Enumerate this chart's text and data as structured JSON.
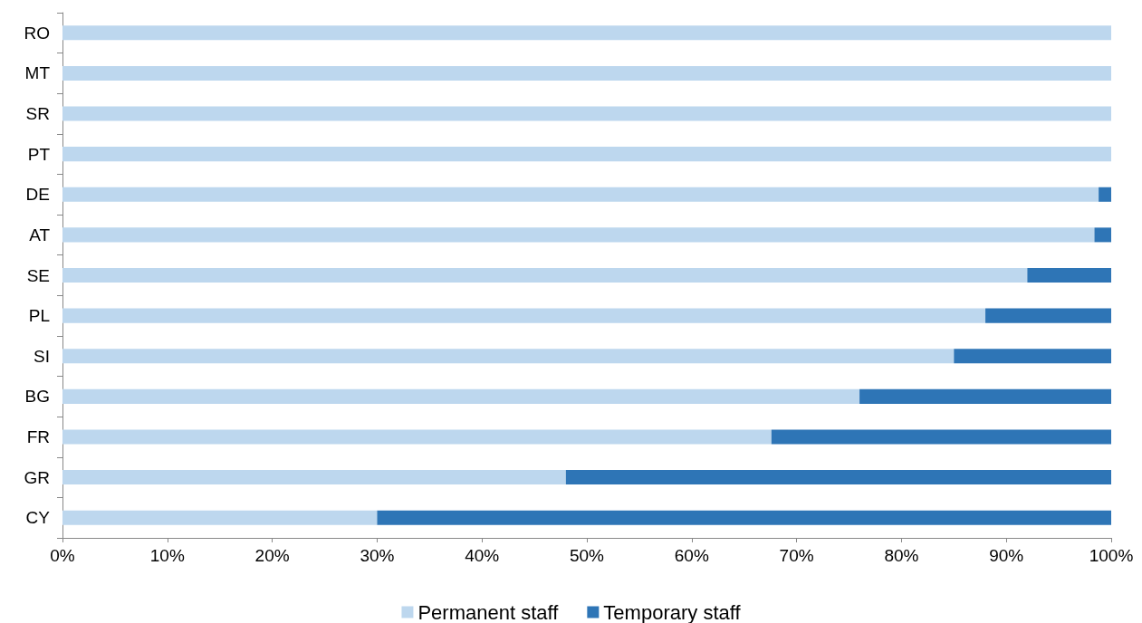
{
  "chart_data": {
    "type": "bar",
    "orientation": "horizontal",
    "stacked": true,
    "categories": [
      "RO",
      "MT",
      "SR",
      "PT",
      "DE",
      "AT",
      "SE",
      "PL",
      "SI",
      "BG",
      "FR",
      "GR",
      "CY"
    ],
    "series": [
      {
        "name": "Permanent staff",
        "color": "#bdd7ee",
        "values": [
          100,
          100,
          100,
          100,
          98.8,
          98.4,
          92,
          88,
          85,
          76,
          67.6,
          48,
          30
        ]
      },
      {
        "name": "Temporary staff",
        "color": "#2e75b6",
        "values": [
          0,
          0,
          0,
          0,
          1.2,
          1.6,
          8,
          12,
          15,
          24,
          32.4,
          52,
          70
        ]
      }
    ],
    "xlim": [
      0,
      100
    ],
    "xticks": [
      {
        "value": 0,
        "label": "0%"
      },
      {
        "value": 10,
        "label": "10%"
      },
      {
        "value": 20,
        "label": "20%"
      },
      {
        "value": 30,
        "label": "30%"
      },
      {
        "value": 40,
        "label": "40%"
      },
      {
        "value": 50,
        "label": "50%"
      },
      {
        "value": 60,
        "label": "60%"
      },
      {
        "value": 70,
        "label": "70%"
      },
      {
        "value": 80,
        "label": "80%"
      },
      {
        "value": 90,
        "label": "90%"
      },
      {
        "value": 100,
        "label": "100%"
      }
    ],
    "grid": false,
    "legend": "bottom"
  }
}
